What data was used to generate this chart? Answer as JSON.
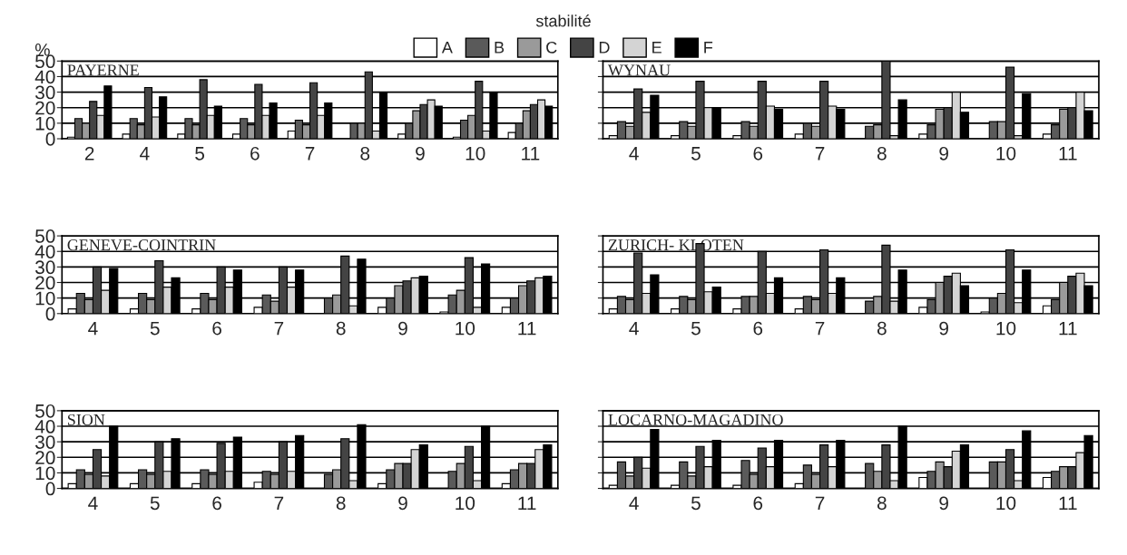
{
  "chart_data": [
    {
      "type": "bar",
      "title": "PAYERNE",
      "ylabel": "%",
      "legend_title": "stabilité",
      "legend": "top",
      "grid": "y",
      "ylim": [
        0,
        50
      ],
      "yticks": [
        0,
        10,
        20,
        30,
        40,
        50
      ],
      "categories": [
        "2",
        "4",
        "5",
        "6",
        "7",
        "8",
        "9",
        "10",
        "11"
      ],
      "series": [
        {
          "name": "A",
          "color": "#ffffff",
          "values": [
            1,
            3,
            3,
            3,
            5,
            0,
            3,
            1,
            4
          ]
        },
        {
          "name": "B",
          "color": "#5a5a5a",
          "values": [
            13,
            13,
            13,
            13,
            12,
            10,
            10,
            12,
            10
          ]
        },
        {
          "name": "C",
          "color": "#9a9a9a",
          "values": [
            10,
            9,
            9,
            9,
            9,
            10,
            18,
            15,
            18
          ]
        },
        {
          "name": "D",
          "color": "#444444",
          "values": [
            24,
            33,
            38,
            35,
            36,
            43,
            22,
            37,
            22
          ]
        },
        {
          "name": "E",
          "color": "#d4d4d4",
          "values": [
            15,
            14,
            15,
            15,
            15,
            5,
            25,
            5,
            25
          ]
        },
        {
          "name": "F",
          "color": "#000000",
          "values": [
            34,
            27,
            21,
            23,
            23,
            30,
            21,
            30,
            21
          ]
        }
      ]
    },
    {
      "type": "bar",
      "title": "WYNAU",
      "grid": "y",
      "ylim": [
        0,
        50
      ],
      "yticks": [
        0,
        10,
        20,
        30,
        40,
        50
      ],
      "tick_labels": "x",
      "categories": [
        "4",
        "5",
        "6",
        "7",
        "8",
        "9",
        "10",
        "11"
      ],
      "series": [
        {
          "color": "#ffffff",
          "values": [
            2,
            2,
            2,
            3,
            0,
            3,
            0,
            3
          ]
        },
        {
          "color": "#5a5a5a",
          "values": [
            11,
            11,
            11,
            10,
            8,
            9,
            11,
            9
          ]
        },
        {
          "color": "#9a9a9a",
          "values": [
            8,
            8,
            8,
            8,
            9,
            19,
            11,
            19
          ]
        },
        {
          "color": "#444444",
          "values": [
            32,
            37,
            37,
            37,
            50,
            20,
            46,
            20
          ]
        },
        {
          "color": "#d4d4d4",
          "values": [
            17,
            20,
            21,
            21,
            2,
            30,
            2,
            30
          ]
        },
        {
          "color": "#000000",
          "values": [
            28,
            20,
            19,
            19,
            25,
            17,
            29,
            18
          ]
        }
      ]
    },
    {
      "type": "bar",
      "title": "GENEVE-COINTRIN",
      "grid": "y",
      "ylim": [
        0,
        50
      ],
      "yticks": [
        0,
        10,
        20,
        30,
        40,
        50
      ],
      "categories": [
        "4",
        "5",
        "6",
        "7",
        "8",
        "9",
        "10",
        "11"
      ],
      "series": [
        {
          "color": "#ffffff",
          "values": [
            3,
            3,
            3,
            4,
            0,
            4,
            1,
            4
          ]
        },
        {
          "color": "#5a5a5a",
          "values": [
            13,
            13,
            13,
            12,
            10,
            10,
            12,
            10
          ]
        },
        {
          "color": "#9a9a9a",
          "values": [
            9,
            9,
            9,
            8,
            12,
            18,
            15,
            18
          ]
        },
        {
          "color": "#444444",
          "values": [
            30,
            34,
            30,
            30,
            37,
            21,
            36,
            21
          ]
        },
        {
          "color": "#d4d4d4",
          "values": [
            15,
            17,
            17,
            17,
            5,
            23,
            4,
            23
          ]
        },
        {
          "color": "#000000",
          "values": [
            29,
            23,
            28,
            28,
            35,
            24,
            32,
            24
          ]
        }
      ]
    },
    {
      "type": "bar",
      "title": "ZURICH- KLOTEN",
      "grid": "y",
      "ylim": [
        0,
        50
      ],
      "yticks": [
        0,
        10,
        20,
        30,
        40,
        50
      ],
      "tick_labels": "x",
      "categories": [
        "4",
        "5",
        "6",
        "7",
        "8",
        "9",
        "10",
        "11"
      ],
      "series": [
        {
          "color": "#ffffff",
          "values": [
            3,
            3,
            3,
            3,
            0,
            4,
            1,
            5
          ]
        },
        {
          "color": "#5a5a5a",
          "values": [
            11,
            11,
            11,
            11,
            8,
            9,
            10,
            9
          ]
        },
        {
          "color": "#9a9a9a",
          "values": [
            9,
            9,
            11,
            9,
            11,
            20,
            13,
            20
          ]
        },
        {
          "color": "#444444",
          "values": [
            39,
            45,
            40,
            41,
            44,
            24,
            41,
            24
          ]
        },
        {
          "color": "#d4d4d4",
          "values": [
            13,
            14,
            13,
            13,
            8,
            26,
            7,
            26
          ]
        },
        {
          "color": "#000000",
          "values": [
            25,
            17,
            23,
            23,
            28,
            18,
            28,
            18
          ]
        }
      ]
    },
    {
      "type": "bar",
      "title": "SION",
      "grid": "y",
      "ylim": [
        0,
        50
      ],
      "yticks": [
        0,
        10,
        20,
        30,
        40,
        50
      ],
      "categories": [
        "4",
        "5",
        "6",
        "7",
        "8",
        "9",
        "10",
        "11"
      ],
      "series": [
        {
          "color": "#ffffff",
          "values": [
            3,
            3,
            3,
            4,
            0,
            3,
            0,
            3
          ]
        },
        {
          "color": "#5a5a5a",
          "values": [
            12,
            12,
            12,
            11,
            9,
            12,
            11,
            12
          ]
        },
        {
          "color": "#9a9a9a",
          "values": [
            9,
            9,
            9,
            9,
            12,
            16,
            16,
            16
          ]
        },
        {
          "color": "#444444",
          "values": [
            25,
            30,
            29,
            30,
            32,
            16,
            27,
            16
          ]
        },
        {
          "color": "#d4d4d4",
          "values": [
            8,
            11,
            11,
            11,
            5,
            25,
            5,
            25
          ]
        },
        {
          "color": "#000000",
          "values": [
            40,
            32,
            33,
            34,
            41,
            28,
            40,
            28
          ]
        }
      ]
    },
    {
      "type": "bar",
      "title": "LOCARNO-MAGADINO",
      "grid": "y",
      "ylim": [
        0,
        50
      ],
      "yticks": [
        0,
        10,
        20,
        30,
        40,
        50
      ],
      "tick_labels": "x",
      "categories": [
        "4",
        "5",
        "6",
        "7",
        "8",
        "9",
        "10",
        "11"
      ],
      "series": [
        {
          "color": "#ffffff",
          "values": [
            2,
            2,
            2,
            3,
            0,
            7,
            0,
            7
          ]
        },
        {
          "color": "#5a5a5a",
          "values": [
            17,
            17,
            18,
            15,
            16,
            11,
            17,
            11
          ]
        },
        {
          "color": "#9a9a9a",
          "values": [
            8,
            8,
            9,
            9,
            11,
            17,
            17,
            14
          ]
        },
        {
          "color": "#444444",
          "values": [
            20,
            27,
            26,
            28,
            28,
            14,
            25,
            14
          ]
        },
        {
          "color": "#d4d4d4",
          "values": [
            13,
            14,
            14,
            14,
            5,
            24,
            5,
            23
          ]
        },
        {
          "color": "#000000",
          "values": [
            38,
            31,
            31,
            31,
            40,
            28,
            37,
            34
          ]
        }
      ]
    }
  ]
}
